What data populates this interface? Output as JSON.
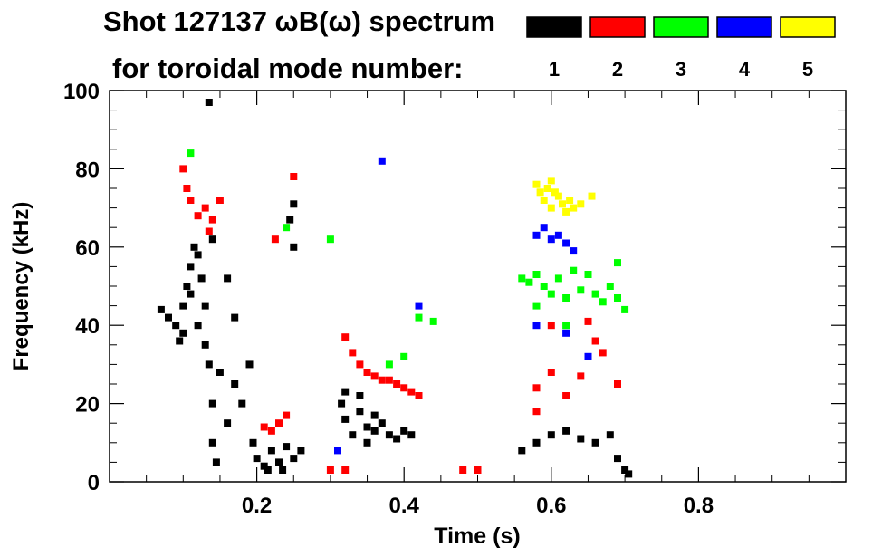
{
  "chart_data": {
    "type": "scatter",
    "title": "Shot 127137 ωB(ω) spectrum",
    "subtitle": "for toroidal mode number:",
    "xlabel": "Time (s)",
    "ylabel": "Frequency (kHz)",
    "xlim": [
      0,
      1.0
    ],
    "ylim": [
      0,
      100
    ],
    "x_ticks": [
      0.2,
      0.4,
      0.6,
      0.8
    ],
    "x_tick_labels": [
      "0.2",
      "0.4",
      "0.6",
      "0.8"
    ],
    "y_ticks": [
      0,
      20,
      40,
      60,
      80,
      100
    ],
    "y_tick_labels": [
      "0",
      "20",
      "40",
      "60",
      "80",
      "100"
    ],
    "grid": false,
    "legend_position": "top-right",
    "legend": [
      {
        "label": "1",
        "color": "#000000"
      },
      {
        "label": "2",
        "color": "#ff0000"
      },
      {
        "label": "3",
        "color": "#00ff00"
      },
      {
        "label": "4",
        "color": "#0000ff"
      },
      {
        "label": "5",
        "color": "#ffff00"
      }
    ],
    "series": [
      {
        "mode": "1",
        "color": "#000000",
        "points": [
          [
            0.07,
            44
          ],
          [
            0.08,
            42
          ],
          [
            0.09,
            40
          ],
          [
            0.095,
            36
          ],
          [
            0.1,
            38
          ],
          [
            0.1,
            45
          ],
          [
            0.105,
            50
          ],
          [
            0.11,
            55
          ],
          [
            0.115,
            60
          ],
          [
            0.12,
            58
          ],
          [
            0.11,
            48
          ],
          [
            0.12,
            40
          ],
          [
            0.13,
            35
          ],
          [
            0.125,
            52
          ],
          [
            0.13,
            45
          ],
          [
            0.135,
            30
          ],
          [
            0.14,
            20
          ],
          [
            0.14,
            10
          ],
          [
            0.145,
            5
          ],
          [
            0.14,
            62
          ],
          [
            0.135,
            97
          ],
          [
            0.15,
            28
          ],
          [
            0.16,
            15
          ],
          [
            0.16,
            52
          ],
          [
            0.17,
            25
          ],
          [
            0.17,
            42
          ],
          [
            0.195,
            10
          ],
          [
            0.2,
            6
          ],
          [
            0.21,
            4
          ],
          [
            0.22,
            8
          ],
          [
            0.23,
            5
          ],
          [
            0.24,
            9
          ],
          [
            0.25,
            6
          ],
          [
            0.26,
            8
          ],
          [
            0.215,
            3
          ],
          [
            0.235,
            3
          ],
          [
            0.25,
            60
          ],
          [
            0.245,
            67
          ],
          [
            0.25,
            71
          ],
          [
            0.18,
            20
          ],
          [
            0.19,
            30
          ],
          [
            0.315,
            20
          ],
          [
            0.32,
            16
          ],
          [
            0.33,
            12
          ],
          [
            0.34,
            18
          ],
          [
            0.35,
            14
          ],
          [
            0.36,
            13
          ],
          [
            0.37,
            15
          ],
          [
            0.38,
            12
          ],
          [
            0.39,
            11
          ],
          [
            0.4,
            13
          ],
          [
            0.41,
            12
          ],
          [
            0.34,
            22
          ],
          [
            0.32,
            23
          ],
          [
            0.36,
            17
          ],
          [
            0.35,
            10
          ],
          [
            0.56,
            8
          ],
          [
            0.58,
            10
          ],
          [
            0.6,
            12
          ],
          [
            0.62,
            13
          ],
          [
            0.64,
            11
          ],
          [
            0.66,
            10
          ],
          [
            0.68,
            12
          ],
          [
            0.7,
            3
          ],
          [
            0.705,
            2
          ],
          [
            0.69,
            6
          ]
        ]
      },
      {
        "mode": "2",
        "color": "#ff0000",
        "points": [
          [
            0.1,
            80
          ],
          [
            0.105,
            75
          ],
          [
            0.11,
            72
          ],
          [
            0.12,
            68
          ],
          [
            0.13,
            70
          ],
          [
            0.14,
            67
          ],
          [
            0.15,
            72
          ],
          [
            0.135,
            64
          ],
          [
            0.21,
            14
          ],
          [
            0.22,
            13
          ],
          [
            0.23,
            15
          ],
          [
            0.24,
            17
          ],
          [
            0.225,
            62
          ],
          [
            0.25,
            78
          ],
          [
            0.3,
            3
          ],
          [
            0.32,
            3
          ],
          [
            0.32,
            37
          ],
          [
            0.33,
            33
          ],
          [
            0.34,
            30
          ],
          [
            0.35,
            28
          ],
          [
            0.36,
            27
          ],
          [
            0.37,
            26
          ],
          [
            0.38,
            26
          ],
          [
            0.39,
            25
          ],
          [
            0.4,
            24
          ],
          [
            0.41,
            23
          ],
          [
            0.42,
            22
          ],
          [
            0.48,
            3
          ],
          [
            0.5,
            3
          ],
          [
            0.58,
            24
          ],
          [
            0.6,
            28
          ],
          [
            0.62,
            22
          ],
          [
            0.64,
            27
          ],
          [
            0.65,
            41
          ],
          [
            0.67,
            33
          ],
          [
            0.69,
            25
          ],
          [
            0.66,
            36
          ],
          [
            0.6,
            40
          ],
          [
            0.58,
            18
          ]
        ]
      },
      {
        "mode": "3",
        "color": "#00ff00",
        "points": [
          [
            0.11,
            84
          ],
          [
            0.24,
            65
          ],
          [
            0.3,
            62
          ],
          [
            0.38,
            30
          ],
          [
            0.4,
            32
          ],
          [
            0.42,
            42
          ],
          [
            0.44,
            41
          ],
          [
            0.56,
            52
          ],
          [
            0.57,
            51
          ],
          [
            0.58,
            53
          ],
          [
            0.59,
            50
          ],
          [
            0.6,
            48
          ],
          [
            0.61,
            52
          ],
          [
            0.62,
            47
          ],
          [
            0.63,
            54
          ],
          [
            0.64,
            49
          ],
          [
            0.65,
            53
          ],
          [
            0.66,
            48
          ],
          [
            0.67,
            46
          ],
          [
            0.68,
            50
          ],
          [
            0.69,
            47
          ],
          [
            0.69,
            56
          ],
          [
            0.7,
            44
          ],
          [
            0.58,
            45
          ],
          [
            0.62,
            40
          ]
        ]
      },
      {
        "mode": "4",
        "color": "#0000ff",
        "points": [
          [
            0.31,
            8
          ],
          [
            0.37,
            82
          ],
          [
            0.42,
            45
          ],
          [
            0.58,
            63
          ],
          [
            0.59,
            65
          ],
          [
            0.6,
            62
          ],
          [
            0.61,
            63
          ],
          [
            0.62,
            61
          ],
          [
            0.63,
            59
          ],
          [
            0.58,
            40
          ],
          [
            0.65,
            32
          ],
          [
            0.62,
            38
          ]
        ]
      },
      {
        "mode": "5",
        "color": "#ffff00",
        "points": [
          [
            0.58,
            76
          ],
          [
            0.585,
            74
          ],
          [
            0.59,
            72
          ],
          [
            0.595,
            75
          ],
          [
            0.6,
            70
          ],
          [
            0.605,
            74
          ],
          [
            0.61,
            73
          ],
          [
            0.615,
            71
          ],
          [
            0.62,
            69
          ],
          [
            0.625,
            72
          ],
          [
            0.63,
            70
          ],
          [
            0.64,
            71
          ],
          [
            0.655,
            73
          ],
          [
            0.6,
            77
          ]
        ]
      }
    ]
  }
}
